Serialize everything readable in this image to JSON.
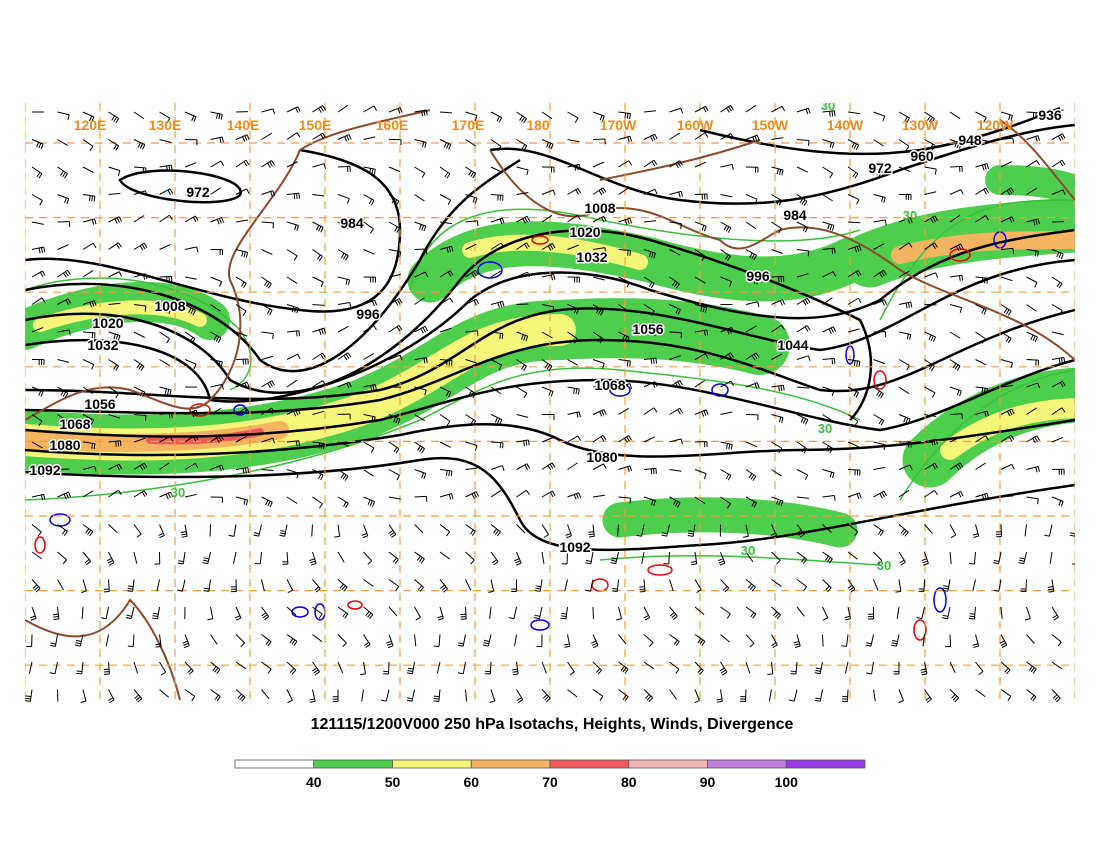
{
  "map": {
    "title": "121115/1200V000 250 hPa Isotachs, Heights, Winds, Divergence",
    "longitude_labels": [
      "120E",
      "130E",
      "140E",
      "150E",
      "160E",
      "170E",
      "180",
      "170W",
      "160W",
      "150W",
      "140W",
      "130W",
      "120W"
    ],
    "height_labels": [
      972,
      984,
      996,
      1008,
      1020,
      1032,
      1056,
      1068,
      1080,
      1092,
      1008,
      1020,
      1032,
      996,
      1056,
      1044,
      1068,
      1080,
      1092,
      984,
      972,
      960,
      948,
      936
    ],
    "isotach_labels": [
      "30",
      "30",
      "30",
      "30",
      "30",
      "30"
    ],
    "colorbar": {
      "colors": [
        "#ffffff",
        "#4dcf4d",
        "#f5f57a",
        "#f5b560",
        "#ee5a5a",
        "#f5b5b5",
        "#c07fdf",
        "#9a3ae8"
      ],
      "ticks": [
        40,
        50,
        60,
        70,
        80,
        90,
        100
      ]
    }
  }
}
